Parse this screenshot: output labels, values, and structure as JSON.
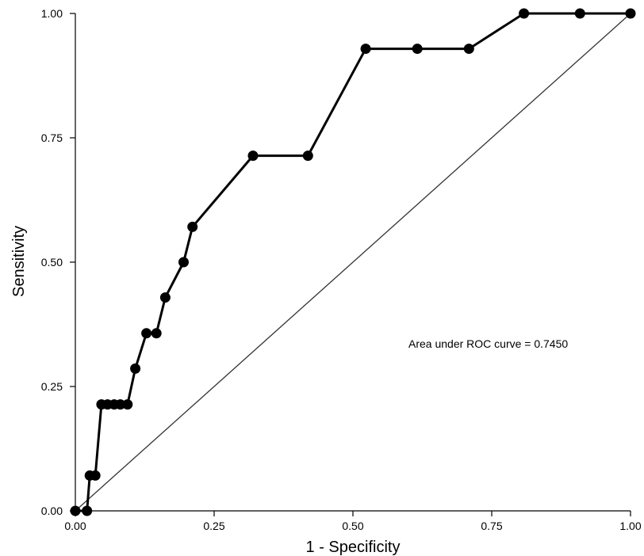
{
  "chart_data": {
    "type": "line",
    "xlabel": "1 - Specificity",
    "ylabel": "Sensitivity",
    "xlim": [
      0,
      1
    ],
    "ylim": [
      0,
      1
    ],
    "xticks": [
      "0.00",
      "0.25",
      "0.50",
      "0.75",
      "1.00"
    ],
    "yticks": [
      "0.00",
      "0.25",
      "0.50",
      "0.75",
      "1.00"
    ],
    "xtick_values": [
      0,
      0.25,
      0.5,
      0.75,
      1
    ],
    "ytick_values": [
      0,
      0.25,
      0.5,
      0.75,
      1
    ],
    "grid": false,
    "annotation": "Area under ROC curve = 0.7450",
    "reference_line": [
      [
        0,
        0
      ],
      [
        1,
        1
      ]
    ],
    "series": [
      {
        "x": [
          0,
          0.021,
          0.026,
          0.036,
          0.047,
          0.058,
          0.07,
          0.081,
          0.094,
          0.108,
          0.128,
          0.146,
          0.162,
          0.195,
          0.211,
          0.32,
          0.419,
          0.523,
          0.616,
          0.709,
          0.808,
          0.909,
          1.0
        ],
        "y": [
          0,
          0,
          0.071,
          0.071,
          0.214,
          0.214,
          0.214,
          0.214,
          0.214,
          0.286,
          0.357,
          0.357,
          0.429,
          0.5,
          0.571,
          0.714,
          0.714,
          0.929,
          0.929,
          0.929,
          1.0,
          1.0,
          1.0
        ]
      }
    ]
  }
}
